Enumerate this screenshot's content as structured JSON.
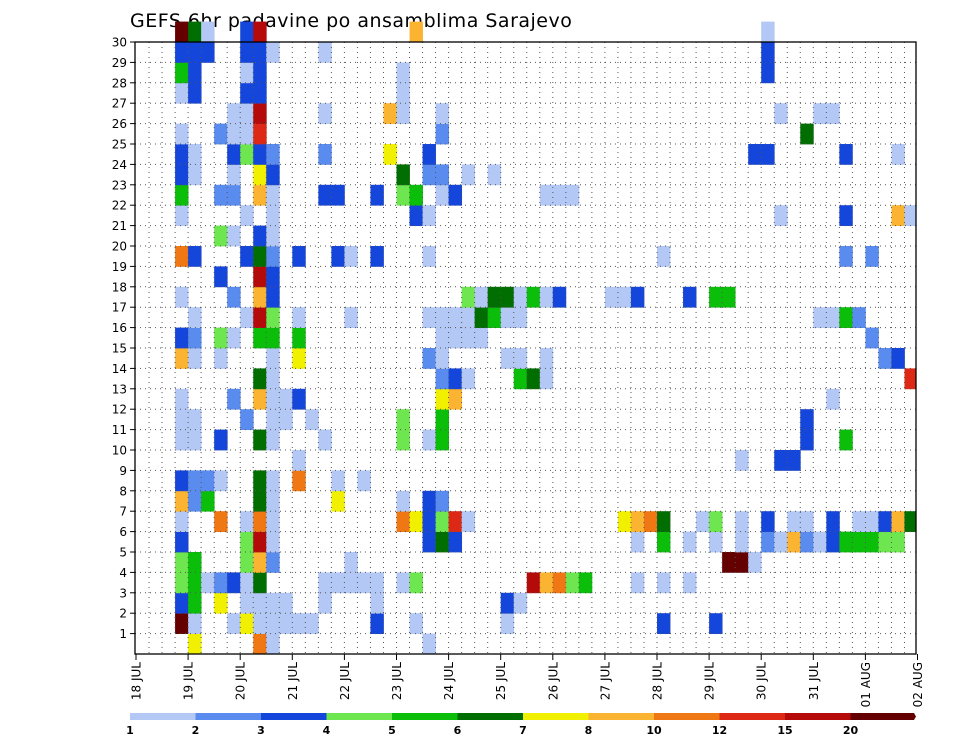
{
  "chart_data": {
    "type": "heatmap",
    "title": "GEFS 6hr padavine po ansamblima Sarajevo",
    "y_ticks": [
      "1",
      "2",
      "3",
      "4",
      "5",
      "6",
      "7",
      "8",
      "9",
      "10",
      "11",
      "12",
      "13",
      "14",
      "15",
      "16",
      "17",
      "18",
      "19",
      "20",
      "21",
      "22",
      "23",
      "24",
      "25",
      "26",
      "27",
      "28",
      "29",
      "30"
    ],
    "x_ticks": [
      "18 JUL",
      "19 JUL",
      "20 JUL",
      "21 JUL",
      "22 JUL",
      "23 JUL",
      "24 JUL",
      "25 JUL",
      "26 JUL",
      "27 JUL",
      "28 JUL",
      "29 JUL",
      "30 JUL",
      "31 JUL",
      "01 AUG",
      "02 AUG"
    ],
    "ylim": [
      0,
      30
    ],
    "steps_per_day": 4,
    "n_steps": 61,
    "grid": true,
    "colorbar_ticks": [
      "1",
      "2",
      "3",
      "4",
      "5",
      "6",
      "7",
      "8",
      "10",
      "12",
      "15",
      "20"
    ],
    "colorbar_colors": [
      "#b4c8f5",
      "#5a8cf0",
      "#1446dc",
      "#6ee650",
      "#0abe0a",
      "#006e00",
      "#f0f000",
      "#fab432",
      "#f07814",
      "#dc2814",
      "#b40a0a",
      "#640000"
    ],
    "cells": [
      [
        7,
        1,
        11
      ],
      [
        7,
        2,
        2
      ],
      [
        7,
        3,
        3
      ],
      [
        7,
        4,
        3
      ],
      [
        7,
        5,
        2
      ],
      [
        7,
        6,
        0
      ],
      [
        7,
        7,
        7
      ],
      [
        7,
        8,
        2
      ],
      [
        7,
        10,
        0
      ],
      [
        7,
        11,
        0
      ],
      [
        7,
        12,
        0
      ],
      [
        7,
        14,
        7
      ],
      [
        7,
        15,
        2
      ],
      [
        7,
        17,
        0
      ],
      [
        7,
        19,
        8
      ],
      [
        7,
        21,
        0
      ],
      [
        7,
        22,
        4
      ],
      [
        7,
        23,
        2
      ],
      [
        7,
        24,
        2
      ],
      [
        7,
        25,
        0
      ],
      [
        7,
        27,
        0
      ],
      [
        7,
        28,
        4
      ],
      [
        7,
        29,
        2
      ],
      [
        7,
        30,
        11
      ],
      [
        8,
        0,
        6
      ],
      [
        8,
        1,
        0
      ],
      [
        8,
        2,
        4
      ],
      [
        8,
        3,
        4
      ],
      [
        8,
        4,
        4
      ],
      [
        8,
        7,
        1
      ],
      [
        8,
        8,
        1
      ],
      [
        8,
        10,
        0
      ],
      [
        8,
        11,
        0
      ],
      [
        8,
        14,
        0
      ],
      [
        8,
        15,
        1
      ],
      [
        8,
        16,
        0
      ],
      [
        8,
        19,
        2
      ],
      [
        8,
        23,
        0
      ],
      [
        8,
        24,
        0
      ],
      [
        8,
        27,
        2
      ],
      [
        8,
        28,
        2
      ],
      [
        8,
        29,
        2
      ],
      [
        8,
        30,
        5
      ],
      [
        9,
        3,
        0
      ],
      [
        9,
        7,
        4
      ],
      [
        9,
        8,
        1
      ],
      [
        9,
        29,
        2
      ],
      [
        9,
        30,
        0
      ],
      [
        10,
        2,
        6
      ],
      [
        10,
        3,
        1
      ],
      [
        10,
        6,
        8
      ],
      [
        10,
        8,
        0
      ],
      [
        10,
        10,
        2
      ],
      [
        10,
        14,
        0
      ],
      [
        10,
        15,
        3
      ],
      [
        10,
        18,
        2
      ],
      [
        10,
        20,
        3
      ],
      [
        10,
        22,
        1
      ],
      [
        10,
        25,
        1
      ],
      [
        11,
        1,
        0
      ],
      [
        11,
        3,
        2
      ],
      [
        11,
        12,
        1
      ],
      [
        11,
        15,
        0
      ],
      [
        11,
        17,
        1
      ],
      [
        11,
        20,
        0
      ],
      [
        11,
        22,
        1
      ],
      [
        11,
        23,
        0
      ],
      [
        11,
        24,
        2
      ],
      [
        11,
        25,
        0
      ],
      [
        11,
        26,
        0
      ],
      [
        12,
        1,
        6
      ],
      [
        12,
        2,
        0
      ],
      [
        12,
        3,
        0
      ],
      [
        12,
        4,
        3
      ],
      [
        12,
        5,
        3
      ],
      [
        12,
        6,
        0
      ],
      [
        12,
        11,
        1
      ],
      [
        12,
        16,
        0
      ],
      [
        12,
        19,
        2
      ],
      [
        12,
        21,
        0
      ],
      [
        12,
        24,
        3
      ],
      [
        12,
        25,
        0
      ],
      [
        12,
        26,
        0
      ],
      [
        12,
        27,
        2
      ],
      [
        12,
        28,
        0
      ],
      [
        12,
        29,
        2
      ],
      [
        12,
        30,
        2
      ],
      [
        13,
        0,
        8
      ],
      [
        13,
        1,
        0
      ],
      [
        13,
        2,
        0
      ],
      [
        13,
        3,
        5
      ],
      [
        13,
        4,
        7
      ],
      [
        13,
        5,
        10
      ],
      [
        13,
        6,
        8
      ],
      [
        13,
        7,
        5
      ],
      [
        13,
        8,
        5
      ],
      [
        13,
        10,
        5
      ],
      [
        13,
        12,
        7
      ],
      [
        13,
        13,
        5
      ],
      [
        13,
        15,
        4
      ],
      [
        13,
        16,
        10
      ],
      [
        13,
        17,
        7
      ],
      [
        13,
        18,
        10
      ],
      [
        13,
        19,
        5
      ],
      [
        13,
        20,
        2
      ],
      [
        13,
        22,
        7
      ],
      [
        13,
        23,
        6
      ],
      [
        13,
        24,
        2
      ],
      [
        13,
        25,
        9
      ],
      [
        13,
        26,
        10
      ],
      [
        13,
        27,
        2
      ],
      [
        13,
        28,
        2
      ],
      [
        13,
        29,
        2
      ],
      [
        13,
        30,
        10
      ],
      [
        14,
        0,
        0
      ],
      [
        14,
        1,
        0
      ],
      [
        14,
        2,
        0
      ],
      [
        14,
        4,
        1
      ],
      [
        14,
        5,
        0
      ],
      [
        14,
        6,
        0
      ],
      [
        14,
        7,
        0
      ],
      [
        14,
        8,
        0
      ],
      [
        14,
        10,
        0
      ],
      [
        14,
        11,
        0
      ],
      [
        14,
        12,
        0
      ],
      [
        14,
        13,
        0
      ],
      [
        14,
        14,
        0
      ],
      [
        14,
        15,
        4
      ],
      [
        14,
        16,
        3
      ],
      [
        14,
        17,
        2
      ],
      [
        14,
        18,
        2
      ],
      [
        14,
        19,
        1
      ],
      [
        14,
        20,
        0
      ],
      [
        14,
        21,
        0
      ],
      [
        14,
        22,
        0
      ],
      [
        14,
        23,
        2
      ],
      [
        14,
        24,
        1
      ],
      [
        14,
        29,
        0
      ],
      [
        15,
        1,
        0
      ],
      [
        15,
        2,
        0
      ],
      [
        15,
        11,
        0
      ],
      [
        15,
        12,
        0
      ],
      [
        16,
        1,
        0
      ],
      [
        16,
        8,
        8
      ],
      [
        16,
        9,
        0
      ],
      [
        16,
        12,
        2
      ],
      [
        16,
        14,
        6
      ],
      [
        16,
        15,
        4
      ],
      [
        16,
        16,
        0
      ],
      [
        16,
        19,
        2
      ],
      [
        17,
        1,
        0
      ],
      [
        17,
        11,
        0
      ],
      [
        18,
        2,
        0
      ],
      [
        18,
        3,
        0
      ],
      [
        18,
        10,
        0
      ],
      [
        18,
        22,
        2
      ],
      [
        18,
        24,
        1
      ],
      [
        18,
        26,
        0
      ],
      [
        18,
        29,
        0
      ],
      [
        19,
        3,
        0
      ],
      [
        19,
        7,
        6
      ],
      [
        19,
        8,
        0
      ],
      [
        19,
        19,
        2
      ],
      [
        19,
        22,
        2
      ],
      [
        20,
        3,
        0
      ],
      [
        20,
        4,
        0
      ],
      [
        20,
        16,
        0
      ],
      [
        20,
        19,
        0
      ],
      [
        21,
        3,
        0
      ],
      [
        21,
        8,
        0
      ],
      [
        22,
        1,
        2
      ],
      [
        22,
        2,
        0
      ],
      [
        22,
        3,
        0
      ],
      [
        22,
        19,
        2
      ],
      [
        22,
        22,
        2
      ],
      [
        23,
        24,
        6
      ],
      [
        23,
        26,
        7
      ],
      [
        24,
        3,
        0
      ],
      [
        24,
        6,
        8
      ],
      [
        24,
        7,
        0
      ],
      [
        24,
        10,
        3
      ],
      [
        24,
        11,
        3
      ],
      [
        24,
        22,
        3
      ],
      [
        24,
        23,
        5
      ],
      [
        24,
        26,
        0
      ],
      [
        24,
        27,
        0
      ],
      [
        24,
        28,
        0
      ],
      [
        25,
        1,
        0
      ],
      [
        25,
        3,
        3
      ],
      [
        25,
        6,
        6
      ],
      [
        25,
        21,
        2
      ],
      [
        25,
        22,
        4
      ],
      [
        25,
        30,
        7
      ],
      [
        26,
        0,
        0
      ],
      [
        26,
        5,
        2
      ],
      [
        26,
        6,
        2
      ],
      [
        26,
        7,
        2
      ],
      [
        26,
        10,
        0
      ],
      [
        26,
        14,
        1
      ],
      [
        26,
        16,
        0
      ],
      [
        26,
        19,
        0
      ],
      [
        26,
        21,
        0
      ],
      [
        26,
        23,
        1
      ],
      [
        26,
        24,
        2
      ],
      [
        27,
        5,
        5
      ],
      [
        27,
        6,
        3
      ],
      [
        27,
        7,
        1
      ],
      [
        27,
        10,
        4
      ],
      [
        27,
        11,
        4
      ],
      [
        27,
        12,
        6
      ],
      [
        27,
        13,
        1
      ],
      [
        27,
        14,
        0
      ],
      [
        27,
        15,
        0
      ],
      [
        27,
        16,
        0
      ],
      [
        27,
        22,
        0
      ],
      [
        27,
        23,
        1
      ],
      [
        27,
        25,
        1
      ],
      [
        27,
        26,
        0
      ],
      [
        28,
        5,
        2
      ],
      [
        28,
        6,
        9
      ],
      [
        28,
        12,
        7
      ],
      [
        28,
        13,
        2
      ],
      [
        28,
        15,
        0
      ],
      [
        28,
        16,
        0
      ],
      [
        28,
        22,
        2
      ],
      [
        29,
        6,
        0
      ],
      [
        29,
        13,
        0
      ],
      [
        29,
        15,
        0
      ],
      [
        29,
        16,
        0
      ],
      [
        29,
        17,
        3
      ],
      [
        29,
        23,
        0
      ],
      [
        30,
        15,
        0
      ],
      [
        30,
        16,
        5
      ],
      [
        30,
        17,
        0
      ],
      [
        31,
        16,
        4
      ],
      [
        31,
        17,
        5
      ],
      [
        31,
        23,
        0
      ],
      [
        32,
        1,
        0
      ],
      [
        32,
        2,
        2
      ],
      [
        32,
        14,
        0
      ],
      [
        32,
        16,
        0
      ],
      [
        32,
        17,
        5
      ],
      [
        33,
        2,
        0
      ],
      [
        33,
        13,
        4
      ],
      [
        33,
        14,
        0
      ],
      [
        33,
        16,
        0
      ],
      [
        33,
        17,
        0
      ],
      [
        34,
        3,
        10
      ],
      [
        34,
        13,
        5
      ],
      [
        34,
        17,
        4
      ],
      [
        35,
        3,
        7
      ],
      [
        35,
        13,
        0
      ],
      [
        35,
        14,
        0
      ],
      [
        35,
        17,
        0
      ],
      [
        35,
        22,
        0
      ],
      [
        36,
        3,
        8
      ],
      [
        36,
        17,
        2
      ],
      [
        36,
        22,
        0
      ],
      [
        37,
        3,
        3
      ],
      [
        37,
        22,
        0
      ],
      [
        38,
        3,
        4
      ],
      [
        40,
        17,
        0
      ],
      [
        41,
        6,
        6
      ],
      [
        41,
        17,
        0
      ],
      [
        42,
        3,
        0
      ],
      [
        42,
        5,
        0
      ],
      [
        42,
        6,
        7
      ],
      [
        42,
        17,
        2
      ],
      [
        43,
        6,
        8
      ],
      [
        44,
        1,
        2
      ],
      [
        44,
        3,
        0
      ],
      [
        44,
        5,
        4
      ],
      [
        44,
        6,
        5
      ],
      [
        44,
        19,
        0
      ],
      [
        46,
        3,
        0
      ],
      [
        46,
        5,
        0
      ],
      [
        46,
        17,
        2
      ],
      [
        47,
        6,
        0
      ],
      [
        48,
        1,
        2
      ],
      [
        48,
        5,
        0
      ],
      [
        48,
        6,
        3
      ],
      [
        48,
        17,
        4
      ],
      [
        49,
        4,
        11
      ],
      [
        49,
        17,
        4
      ],
      [
        50,
        4,
        11
      ],
      [
        50,
        5,
        0
      ],
      [
        50,
        6,
        0
      ],
      [
        50,
        9,
        0
      ],
      [
        51,
        4,
        0
      ],
      [
        51,
        24,
        2
      ],
      [
        52,
        5,
        1
      ],
      [
        52,
        6,
        2
      ],
      [
        52,
        24,
        2
      ],
      [
        52,
        28,
        2
      ],
      [
        52,
        29,
        2
      ],
      [
        52,
        30,
        0
      ],
      [
        53,
        5,
        0
      ],
      [
        53,
        9,
        2
      ],
      [
        53,
        21,
        0
      ],
      [
        53,
        26,
        0
      ],
      [
        54,
        5,
        7
      ],
      [
        54,
        6,
        0
      ],
      [
        54,
        9,
        2
      ],
      [
        55,
        5,
        1
      ],
      [
        55,
        6,
        0
      ],
      [
        55,
        10,
        2
      ],
      [
        55,
        11,
        2
      ],
      [
        55,
        25,
        5
      ],
      [
        56,
        5,
        0
      ],
      [
        56,
        16,
        0
      ],
      [
        56,
        26,
        0
      ],
      [
        57,
        5,
        2
      ],
      [
        57,
        6,
        2
      ],
      [
        57,
        12,
        0
      ],
      [
        57,
        16,
        0
      ],
      [
        57,
        26,
        0
      ],
      [
        58,
        5,
        4
      ],
      [
        58,
        10,
        4
      ],
      [
        58,
        16,
        4
      ],
      [
        58,
        19,
        1
      ],
      [
        58,
        21,
        2
      ],
      [
        58,
        24,
        2
      ],
      [
        59,
        5,
        4
      ],
      [
        59,
        6,
        0
      ],
      [
        59,
        16,
        1
      ],
      [
        60,
        5,
        4
      ],
      [
        60,
        6,
        0
      ],
      [
        60,
        15,
        1
      ],
      [
        60,
        19,
        1
      ],
      [
        61,
        5,
        3
      ],
      [
        61,
        6,
        2
      ],
      [
        61,
        14,
        1
      ],
      [
        62,
        5,
        3
      ],
      [
        62,
        6,
        7
      ],
      [
        62,
        14,
        2
      ],
      [
        62,
        21,
        7
      ],
      [
        62,
        24,
        0
      ],
      [
        63,
        6,
        5
      ],
      [
        63,
        13,
        9
      ],
      [
        63,
        21,
        0
      ]
    ]
  }
}
